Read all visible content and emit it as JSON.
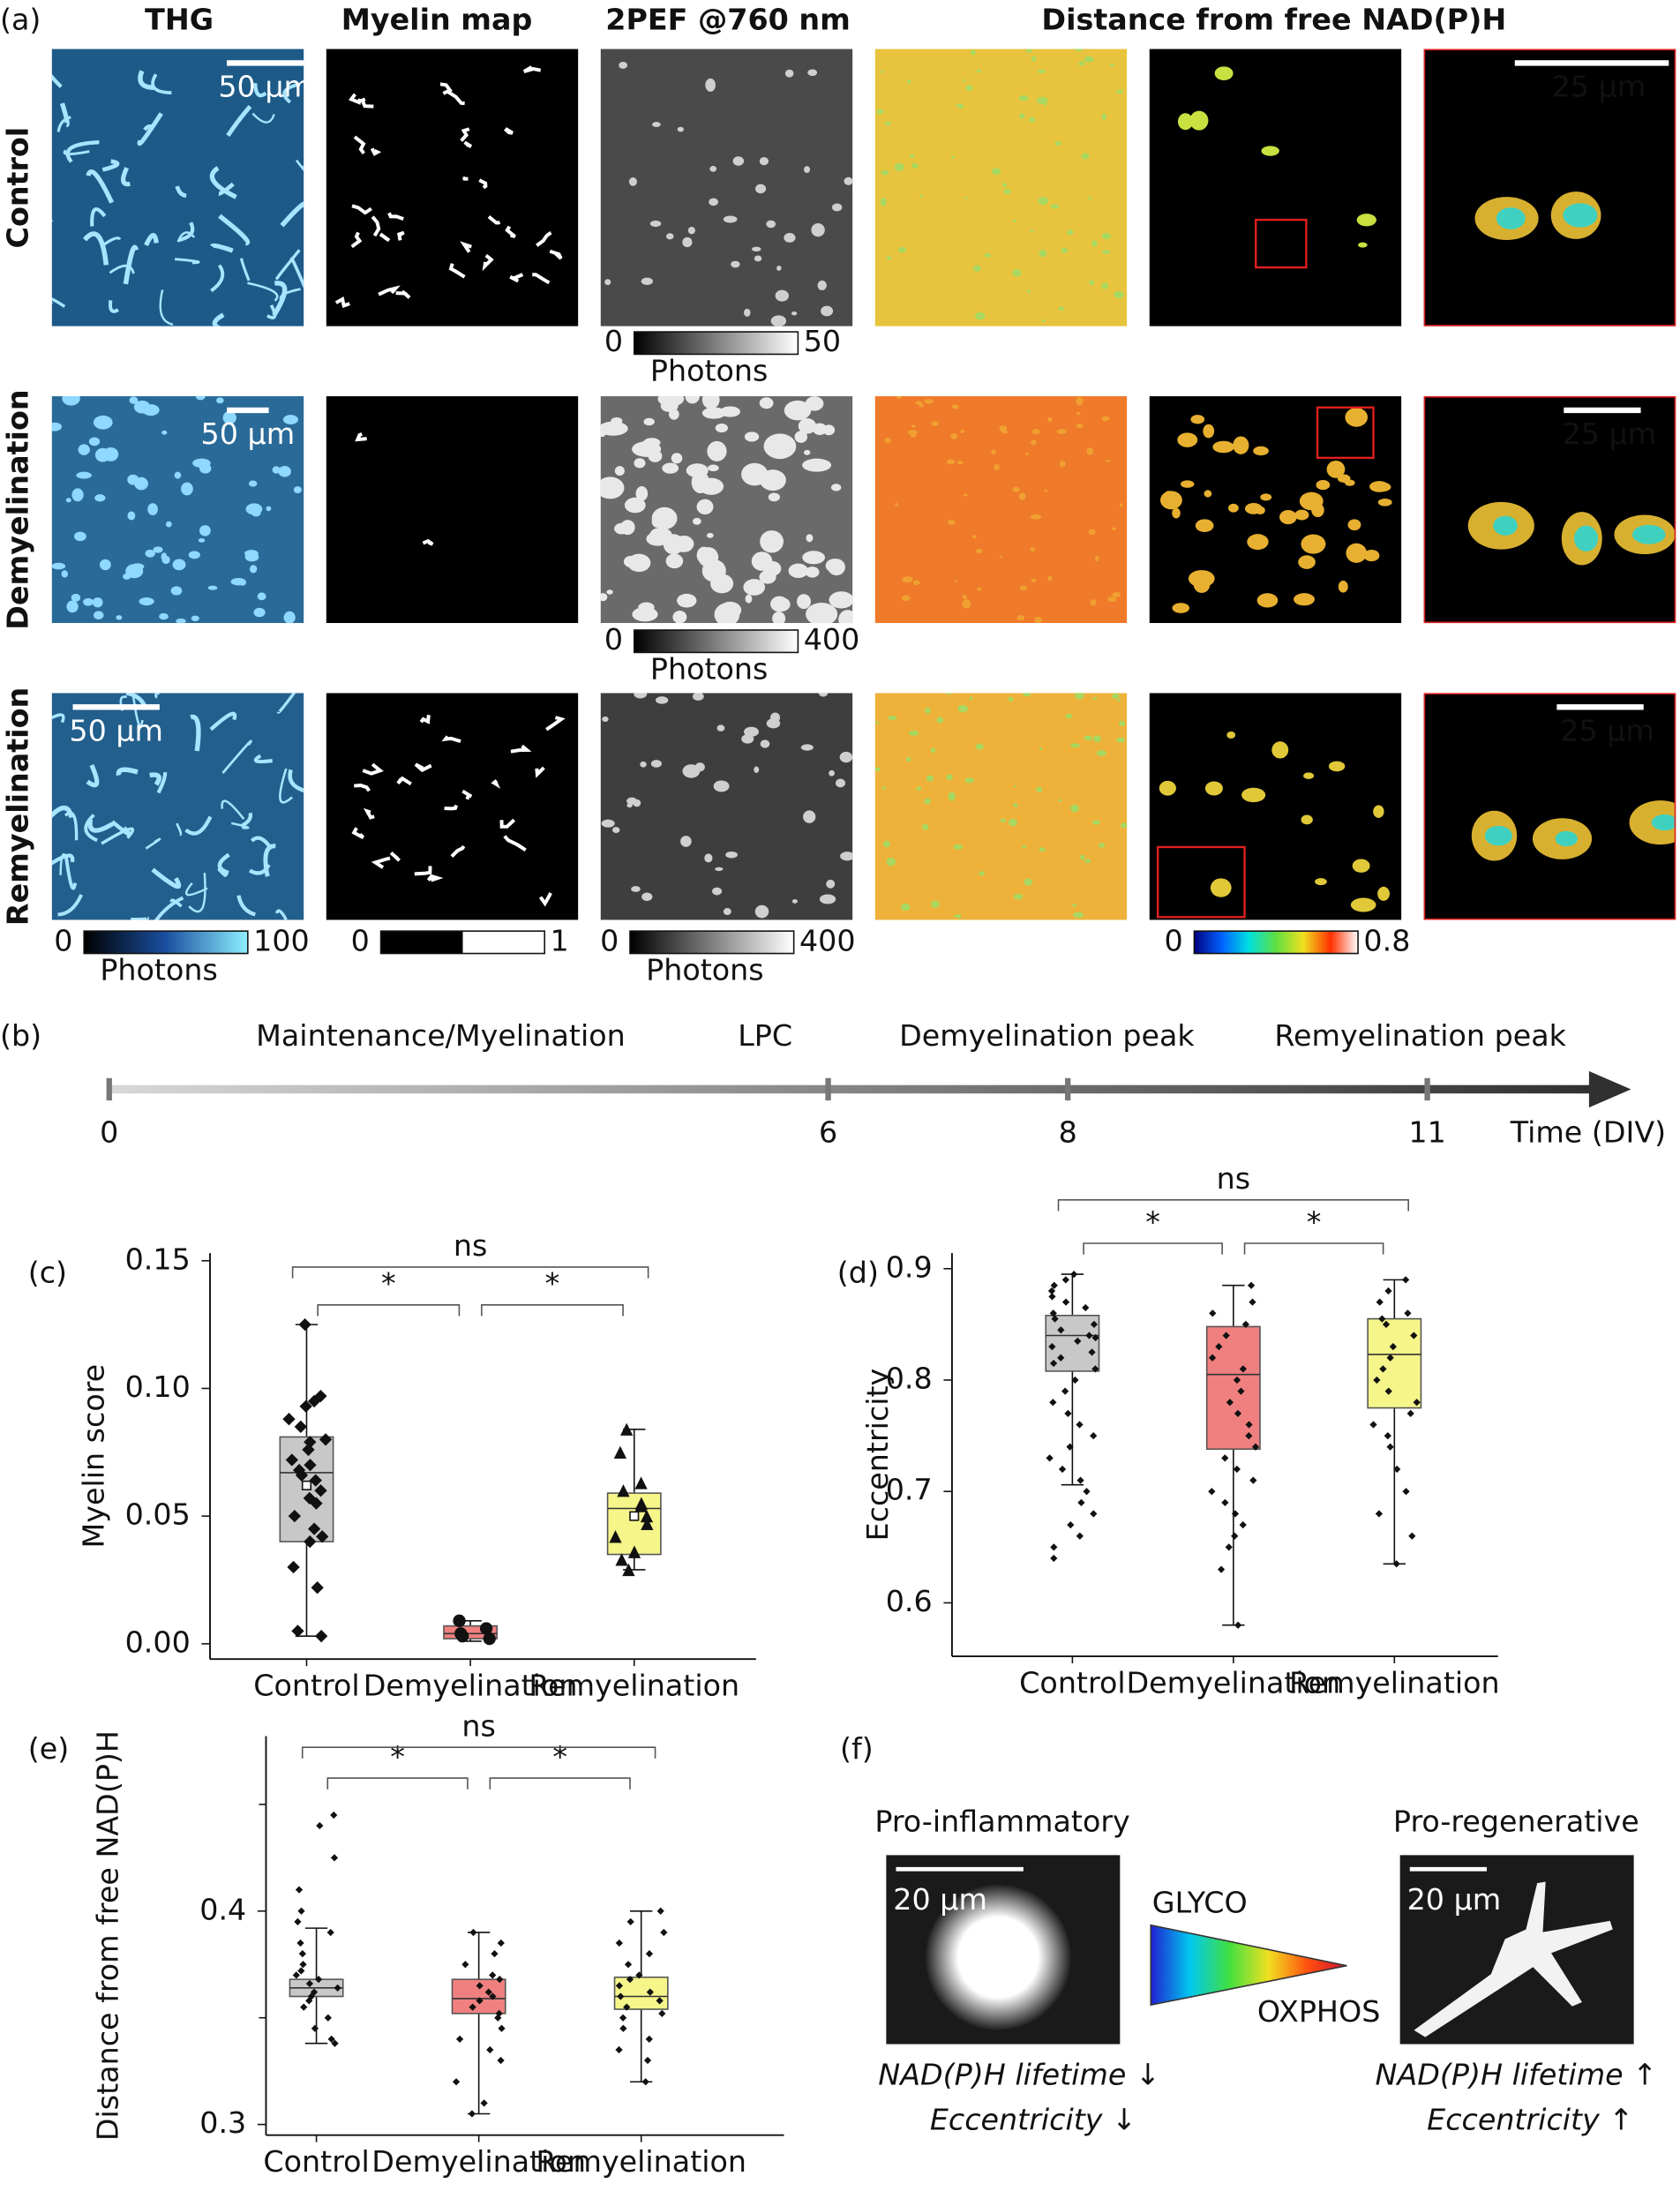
{
  "figure": {
    "panel_a": {
      "label": "(a)",
      "headers": [
        "THG",
        "Myelin map",
        "2PEF @760 nm",
        "Distance from free NAD(P)H"
      ],
      "rows": [
        {
          "name": "Control",
          "scale_bars": [
            "50 µm",
            "25 µm"
          ]
        },
        {
          "name": "Demyelination",
          "scale_bars": [
            "50 µm",
            "25 µm"
          ]
        },
        {
          "name": "Remyelination",
          "scale_bars": [
            "50 µm",
            "25 µm"
          ]
        }
      ],
      "colorbars": [
        {
          "min": 0,
          "max": 50,
          "label": "Photons",
          "colors": [
            "#000000",
            "#ffffff"
          ]
        },
        {
          "min": 0,
          "max": 400,
          "label": "Photons",
          "colors": [
            "#000000",
            "#ffffff"
          ]
        },
        {
          "min": 0,
          "max": 100,
          "label": "Photons",
          "colors": [
            "#000000",
            "#1a4fa0",
            "#8ef0ff"
          ]
        },
        {
          "min": 0,
          "max": 1,
          "colors": [
            "#000000",
            "#ffffff"
          ],
          "discrete": true
        },
        {
          "min": 0,
          "max": 400,
          "label": "Photons",
          "colors": [
            "#000000",
            "#ffffff"
          ]
        },
        {
          "min": 0,
          "max": 0.8,
          "colors": [
            "#000080",
            "#0060ff",
            "#00e0e0",
            "#60e040",
            "#f0e020",
            "#ff3000",
            "#ffffff"
          ]
        }
      ]
    },
    "panel_f": {
      "label": "(f)",
      "left": {
        "title": "Pro-inflammatory",
        "scale_bar": "20 µm",
        "notes": [
          "NAD(P)H lifetime ↓",
          "Eccentricity ↓"
        ]
      },
      "right": {
        "title": "Pro-regenerative",
        "scale_bar": "20 µm",
        "notes": [
          "NAD(P)H lifetime ↑",
          "Eccentricity ↑"
        ]
      },
      "gradient": {
        "top": "GLYCO",
        "bottom": "OXPHOS"
      }
    }
  },
  "chart_data": [
    {
      "type": "timeline",
      "panel_label": "(b)",
      "events": [
        "Maintenance/Myelination",
        "LPC",
        "Demyelination peak",
        "Remyelination peak"
      ],
      "xlim": [
        0,
        12.7
      ],
      "xticks": [
        0,
        6,
        8,
        11
      ],
      "xlabel": "Time (DIV)"
    },
    {
      "type": "box",
      "panel_label": "(c)",
      "ylabel": "Myelin score",
      "categories": [
        "Control",
        "Demyelination",
        "Remyelination"
      ],
      "ylim": [
        -0.006,
        0.153
      ],
      "yticks": [
        {
          "value": 0,
          "label": "0.00"
        },
        {
          "value": 0.05,
          "label": "0.05"
        },
        {
          "value": 0.1,
          "label": "0.10"
        },
        {
          "value": 0.15,
          "label": "0.15"
        }
      ],
      "boxes": [
        {
          "color": "#c8c8c8",
          "whislo": 0.003,
          "q1": 0.04,
          "med": 0.067,
          "q3": 0.081,
          "whishi": 0.125,
          "mean": 0.062,
          "points": [
            0.125,
            0.097,
            0.095,
            0.093,
            0.088,
            0.085,
            0.08,
            0.079,
            0.076,
            0.072,
            0.07,
            0.068,
            0.066,
            0.064,
            0.06,
            0.057,
            0.055,
            0.05,
            0.045,
            0.042,
            0.04,
            0.03,
            0.022,
            0.005,
            0.003
          ]
        },
        {
          "color": "#f08080",
          "whislo": 0.001,
          "q1": 0.002,
          "med": 0.004,
          "q3": 0.007,
          "whishi": 0.009,
          "points": [
            0.009,
            0.006,
            0.004,
            0.003,
            0.002
          ]
        },
        {
          "color": "#f5f58a",
          "whislo": 0.029,
          "q1": 0.035,
          "med": 0.053,
          "q3": 0.059,
          "whishi": 0.084,
          "mean": 0.05,
          "points": [
            0.084,
            0.075,
            0.063,
            0.06,
            0.055,
            0.054,
            0.05,
            0.047,
            0.042,
            0.036,
            0.033,
            0.029
          ]
        }
      ],
      "comparisons": [
        {
          "label": "*"
        },
        {
          "label": "*"
        },
        {
          "label": "ns"
        }
      ]
    },
    {
      "type": "box",
      "panel_label": "(d)",
      "ylabel": "Eccentricity",
      "categories": [
        "Control",
        "Demyelination",
        "Remyelination"
      ],
      "ylim": [
        0.552,
        0.914
      ],
      "yticks": [
        0.6,
        0.7,
        0.8,
        0.9
      ],
      "boxes": [
        {
          "color": "#c8c8c8",
          "whislo": 0.706,
          "q1": 0.808,
          "med": 0.84,
          "q3": 0.858,
          "whishi": 0.895,
          "points": [
            0.895,
            0.89,
            0.885,
            0.88,
            0.875,
            0.87,
            0.865,
            0.86,
            0.855,
            0.85,
            0.845,
            0.84,
            0.838,
            0.835,
            0.83,
            0.825,
            0.82,
            0.815,
            0.81,
            0.8,
            0.79,
            0.78,
            0.77,
            0.76,
            0.75,
            0.74,
            0.73,
            0.72,
            0.71,
            0.7,
            0.69,
            0.68,
            0.67,
            0.66,
            0.65,
            0.64
          ]
        },
        {
          "color": "#f08080",
          "whislo": 0.58,
          "q1": 0.738,
          "med": 0.805,
          "q3": 0.848,
          "whishi": 0.885,
          "points": [
            0.885,
            0.87,
            0.86,
            0.85,
            0.84,
            0.83,
            0.82,
            0.81,
            0.8,
            0.79,
            0.78,
            0.77,
            0.76,
            0.75,
            0.74,
            0.73,
            0.72,
            0.71,
            0.7,
            0.69,
            0.68,
            0.67,
            0.66,
            0.65,
            0.63,
            0.58
          ]
        },
        {
          "color": "#f5f58a",
          "whislo": 0.635,
          "q1": 0.775,
          "med": 0.823,
          "q3": 0.855,
          "whishi": 0.89,
          "points": [
            0.89,
            0.88,
            0.87,
            0.86,
            0.855,
            0.85,
            0.84,
            0.83,
            0.82,
            0.81,
            0.8,
            0.79,
            0.78,
            0.77,
            0.76,
            0.75,
            0.74,
            0.72,
            0.7,
            0.68,
            0.66,
            0.635
          ]
        }
      ],
      "comparisons": [
        {
          "label": "*"
        },
        {
          "label": "*"
        },
        {
          "label": "ns"
        }
      ]
    },
    {
      "type": "box",
      "panel_label": "(e)",
      "ylabel": "Distance from free NAD(P)H",
      "categories": [
        "Control",
        "Demyelination",
        "Remyelination"
      ],
      "ylim": [
        0.295,
        0.482
      ],
      "yticks": [
        0.3,
        0.4
      ],
      "minor_yticks": [
        0.35,
        0.45
      ],
      "boxes": [
        {
          "color": "#c8c8c8",
          "whislo": 0.338,
          "q1": 0.36,
          "med": 0.364,
          "q3": 0.368,
          "whishi": 0.392,
          "points": [
            0.445,
            0.44,
            0.425,
            0.41,
            0.4,
            0.395,
            0.39,
            0.385,
            0.38,
            0.375,
            0.372,
            0.37,
            0.368,
            0.366,
            0.364,
            0.362,
            0.36,
            0.358,
            0.355,
            0.35,
            0.345,
            0.34,
            0.338
          ]
        },
        {
          "color": "#f08080",
          "whislo": 0.305,
          "q1": 0.352,
          "med": 0.359,
          "q3": 0.368,
          "whishi": 0.39,
          "points": [
            0.39,
            0.385,
            0.38,
            0.375,
            0.37,
            0.368,
            0.365,
            0.362,
            0.36,
            0.358,
            0.355,
            0.352,
            0.35,
            0.345,
            0.34,
            0.335,
            0.33,
            0.32,
            0.31,
            0.305
          ]
        },
        {
          "color": "#f5f58a",
          "whislo": 0.32,
          "q1": 0.354,
          "med": 0.36,
          "q3": 0.369,
          "whishi": 0.4,
          "points": [
            0.4,
            0.395,
            0.39,
            0.385,
            0.38,
            0.375,
            0.37,
            0.368,
            0.365,
            0.362,
            0.36,
            0.358,
            0.355,
            0.352,
            0.35,
            0.345,
            0.34,
            0.335,
            0.33,
            0.32
          ]
        }
      ],
      "comparisons": [
        {
          "label": "*"
        },
        {
          "label": "*"
        },
        {
          "label": "ns"
        }
      ]
    }
  ]
}
